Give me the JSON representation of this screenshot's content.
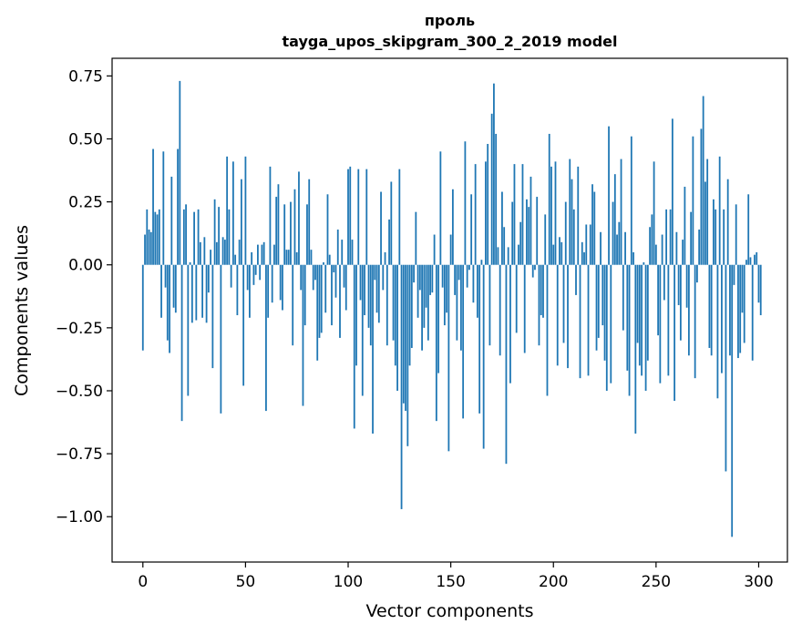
{
  "chart_data": {
    "type": "bar",
    "title": "проль",
    "subtitle": "tayga_upos_skipgram_300_2_2019 model",
    "xlabel": "Vector components",
    "ylabel": "Components values",
    "xlim": [
      -15,
      314
    ],
    "ylim": [
      -1.18,
      0.82
    ],
    "xticks": [
      0,
      50,
      100,
      150,
      200,
      250,
      300
    ],
    "yticks": [
      0.75,
      0.5,
      0.25,
      0.0,
      -0.25,
      -0.5,
      -0.75,
      -1.0
    ],
    "xtick_labels": [
      "0",
      "50",
      "100",
      "150",
      "200",
      "250",
      "300"
    ],
    "ytick_labels": [
      "0.75",
      "0.50",
      "0.25",
      "0.00",
      "−0.25",
      "−0.50",
      "−0.75",
      "−1.00"
    ],
    "color": "#1f77b4",
    "values": [
      -0.34,
      0.12,
      0.22,
      0.14,
      0.13,
      0.46,
      0.21,
      0.2,
      0.22,
      -0.21,
      0.45,
      -0.09,
      -0.3,
      -0.35,
      0.35,
      -0.17,
      -0.19,
      0.46,
      0.73,
      -0.62,
      0.22,
      0.24,
      -0.52,
      0.01,
      -0.23,
      0.21,
      -0.22,
      0.22,
      0.09,
      -0.21,
      0.11,
      -0.23,
      -0.11,
      0.06,
      -0.41,
      0.26,
      0.09,
      0.23,
      -0.59,
      0.11,
      0.1,
      0.43,
      0.22,
      -0.09,
      0.41,
      0.04,
      -0.2,
      0.1,
      0.34,
      -0.48,
      0.43,
      -0.1,
      -0.21,
      0.05,
      -0.08,
      -0.04,
      0.08,
      -0.06,
      0.08,
      0.09,
      -0.58,
      -0.21,
      0.39,
      -0.15,
      0.08,
      0.27,
      0.32,
      -0.14,
      -0.18,
      0.24,
      0.06,
      0.06,
      0.25,
      -0.32,
      0.3,
      0.05,
      0.37,
      -0.1,
      -0.56,
      -0.24,
      0.24,
      0.34,
      0.06,
      -0.1,
      -0.06,
      -0.38,
      -0.29,
      -0.27,
      0.01,
      -0.19,
      0.28,
      0.04,
      -0.24,
      -0.03,
      -0.13,
      0.14,
      -0.29,
      0.1,
      -0.09,
      -0.18,
      0.38,
      0.39,
      0.1,
      -0.65,
      -0.4,
      0.38,
      -0.14,
      -0.52,
      -0.2,
      0.38,
      -0.25,
      -0.32,
      -0.67,
      -0.06,
      -0.19,
      -0.23,
      0.29,
      -0.1,
      0.05,
      -0.32,
      0.18,
      0.33,
      -0.3,
      -0.4,
      -0.5,
      0.38,
      -0.97,
      -0.55,
      -0.58,
      -0.72,
      -0.4,
      -0.33,
      -0.07,
      0.21,
      -0.21,
      -0.1,
      -0.34,
      -0.25,
      -0.17,
      -0.3,
      -0.12,
      -0.11,
      0.12,
      -0.62,
      -0.43,
      0.45,
      -0.09,
      -0.24,
      -0.19,
      -0.74,
      0.12,
      0.3,
      -0.12,
      -0.3,
      -0.06,
      -0.34,
      -0.61,
      0.49,
      -0.09,
      -0.02,
      0.28,
      -0.15,
      0.4,
      -0.21,
      -0.59,
      0.02,
      -0.73,
      0.41,
      0.48,
      -0.32,
      0.6,
      0.72,
      0.52,
      0.07,
      -0.36,
      0.29,
      0.15,
      -0.79,
      0.07,
      -0.47,
      0.25,
      0.4,
      -0.27,
      0.08,
      0.17,
      0.4,
      -0.35,
      0.26,
      0.23,
      0.35,
      -0.05,
      -0.02,
      0.27,
      -0.32,
      -0.2,
      -0.21,
      0.2,
      -0.52,
      0.52,
      0.39,
      0.08,
      0.41,
      -0.4,
      0.11,
      0.09,
      -0.31,
      0.25,
      -0.41,
      0.42,
      0.34,
      0.22,
      -0.12,
      0.39,
      -0.45,
      0.09,
      0.05,
      0.16,
      -0.44,
      0.16,
      0.32,
      0.29,
      -0.34,
      -0.29,
      0.13,
      -0.24,
      -0.38,
      -0.5,
      0.55,
      -0.47,
      0.25,
      0.36,
      0.12,
      0.17,
      0.42,
      -0.26,
      0.13,
      -0.42,
      -0.52,
      0.51,
      0.05,
      -0.67,
      -0.31,
      -0.4,
      -0.44,
      0.01,
      -0.5,
      -0.38,
      0.15,
      0.2,
      0.41,
      0.08,
      -0.28,
      -0.47,
      0.12,
      -0.14,
      0.22,
      -0.44,
      0.22,
      0.58,
      -0.54,
      0.13,
      -0.16,
      -0.3,
      0.1,
      0.31,
      -0.17,
      -0.36,
      0.21,
      0.51,
      -0.45,
      -0.07,
      0.14,
      0.54,
      0.67,
      0.33,
      0.42,
      -0.33,
      -0.36,
      0.26,
      0.22,
      -0.53,
      0.43,
      -0.43,
      0.22,
      -0.82,
      0.34,
      -0.36,
      -1.08,
      -0.08,
      0.24,
      -0.37,
      -0.35,
      -0.19,
      -0.31,
      0.02,
      0.28,
      0.03,
      -0.38,
      0.04,
      0.05,
      -0.15,
      -0.2
    ]
  }
}
